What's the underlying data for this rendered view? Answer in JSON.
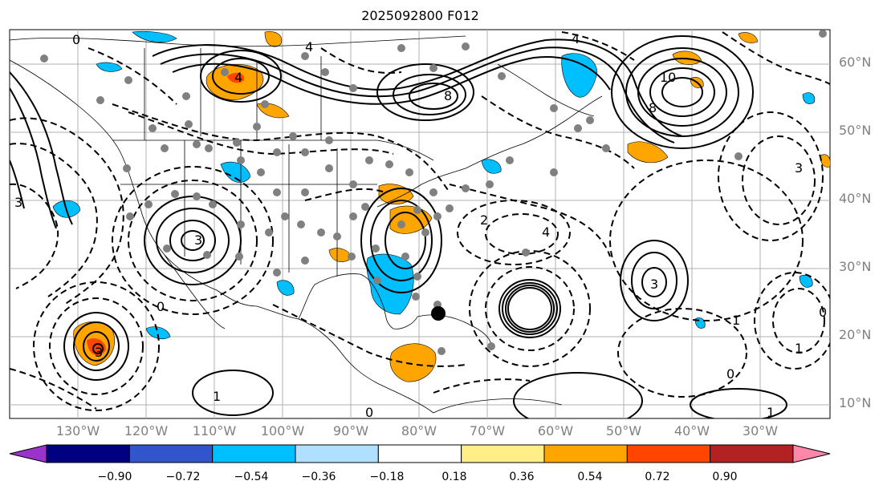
{
  "title": "2025092800 F012",
  "lat_labels": [
    "60°N",
    "50°N",
    "40°N",
    "30°N",
    "20°N",
    "10°N"
  ],
  "lon_labels": [
    "130°W",
    "120°W",
    "110°W",
    "100°W",
    "90°W",
    "80°W",
    "70°W",
    "60°W",
    "50°W",
    "40°W",
    "30°W"
  ],
  "colorbar": {
    "colors": [
      "#9933cc",
      "#000080",
      "#3355cc",
      "#00bfff",
      "#b0e0ff",
      "#ffffff",
      "#ffee88",
      "#ffa500",
      "#ff4500",
      "#b22222",
      "#ff88aa"
    ],
    "ticks": [
      "−0.90",
      "−0.72",
      "−0.54",
      "−0.36",
      "−0.18",
      "0.18",
      "0.36",
      "0.54",
      "0.72",
      "0.90"
    ]
  },
  "contour_labels": [
    "0",
    "4",
    "4",
    "8",
    "10",
    "8",
    "4",
    "3",
    "3",
    "4",
    "3",
    "2",
    "0",
    "3",
    "1",
    "0",
    "0",
    "1",
    "1",
    "1",
    "0",
    "3"
  ]
}
